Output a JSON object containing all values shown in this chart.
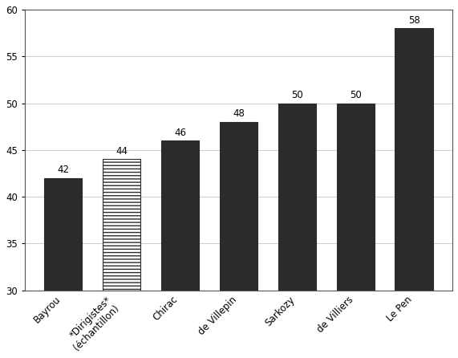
{
  "categories": [
    "Bayrou",
    "*Dirigistes*\n(échantillon)",
    "Chirac",
    "de Villepin",
    "Sarkozy",
    "de Villiers",
    "Le Pen"
  ],
  "values": [
    42,
    44,
    46,
    48,
    50,
    50,
    58
  ],
  "dark_color": "#2b2b2b",
  "hatch_bar_index": 1,
  "ylim": [
    30,
    60
  ],
  "yticks": [
    30,
    35,
    40,
    45,
    50,
    55,
    60
  ],
  "bar_width": 0.65,
  "tick_fontsize": 8.5,
  "value_label_fontsize": 8.5,
  "background_color": "#ffffff",
  "edge_color": "#2b2b2b",
  "grid_color": "#bbbbbb",
  "figsize": [
    5.71,
    4.46
  ],
  "dpi": 100
}
